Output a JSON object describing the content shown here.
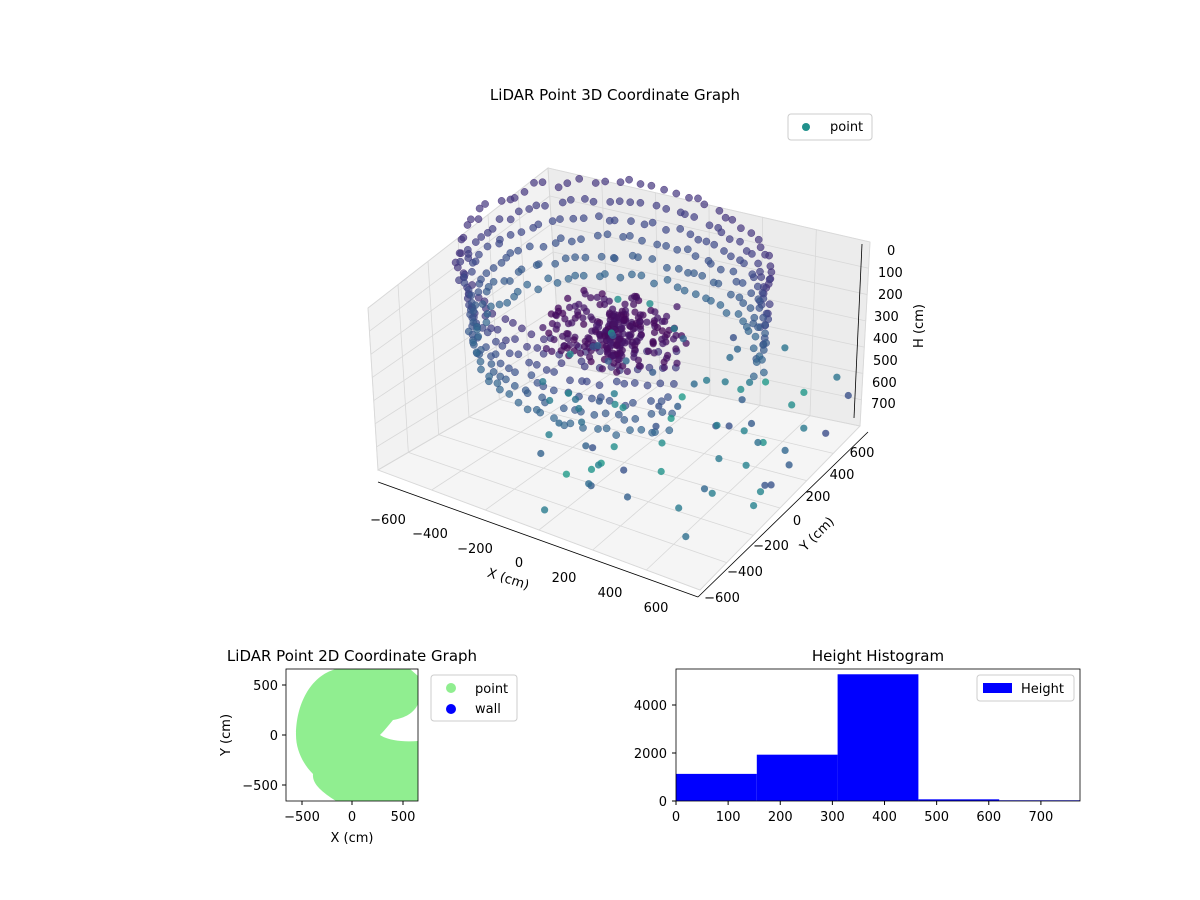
{
  "chart_data": [
    {
      "type": "scatter",
      "subtype": "3d",
      "title": "LiDAR Point 3D Coordinate Graph",
      "xlabel": "X (cm)",
      "ylabel": "Y (cm)",
      "zlabel": "H (cm)",
      "x_ticks": [
        "−600",
        "−400",
        "−200",
        "0",
        "200",
        "400",
        "600"
      ],
      "y_ticks": [
        "−600",
        "−400",
        "−200",
        "0",
        "200",
        "400",
        "600"
      ],
      "z_ticks": [
        "0",
        "100",
        "200",
        "300",
        "400",
        "500",
        "600",
        "700"
      ],
      "xlim": [
        -650,
        650
      ],
      "ylim": [
        -650,
        650
      ],
      "zlim": [
        0,
        775
      ],
      "z_inverted": true,
      "legend": [
        {
          "label": "point",
          "color": "#21918c"
        }
      ],
      "legend_position": "top-right",
      "colormap": "viridis",
      "grid": true,
      "series": [
        {
          "name": "point",
          "description_rings_height_range": [
            100,
            500
          ],
          "ring_radius_approx": [
            450,
            650
          ]
        }
      ]
    },
    {
      "type": "scatter",
      "title": "LiDAR Point 2D Coordinate Graph",
      "xlabel": "X (cm)",
      "ylabel": "Y (cm)",
      "x_ticks": [
        "−500",
        "0",
        "500"
      ],
      "y_ticks": [
        "−500",
        "0",
        "500"
      ],
      "xlim": [
        -650,
        650
      ],
      "ylim": [
        -650,
        650
      ],
      "legend": [
        {
          "label": "point",
          "color": "#90ee90"
        },
        {
          "label": "wall",
          "color": "#0000ff"
        }
      ],
      "legend_position": "outside-right",
      "grid": false
    },
    {
      "type": "bar",
      "subtype": "histogram",
      "title": "Height Histogram",
      "x_ticks": [
        "0",
        "100",
        "200",
        "300",
        "400",
        "500",
        "600",
        "700"
      ],
      "y_ticks": [
        "0",
        "2000",
        "4000"
      ],
      "xlim": [
        0,
        775
      ],
      "ylim": [
        0,
        5500
      ],
      "bins": [
        {
          "start": 0,
          "end": 155,
          "count": 1130
        },
        {
          "start": 155,
          "end": 310,
          "count": 1930
        },
        {
          "start": 310,
          "end": 465,
          "count": 5280
        },
        {
          "start": 465,
          "end": 620,
          "count": 70
        },
        {
          "start": 620,
          "end": 775,
          "count": 30
        }
      ],
      "color": "#0000ff",
      "legend": [
        {
          "label": "Height",
          "color": "#0000ff"
        }
      ],
      "legend_position": "top-right"
    }
  ]
}
